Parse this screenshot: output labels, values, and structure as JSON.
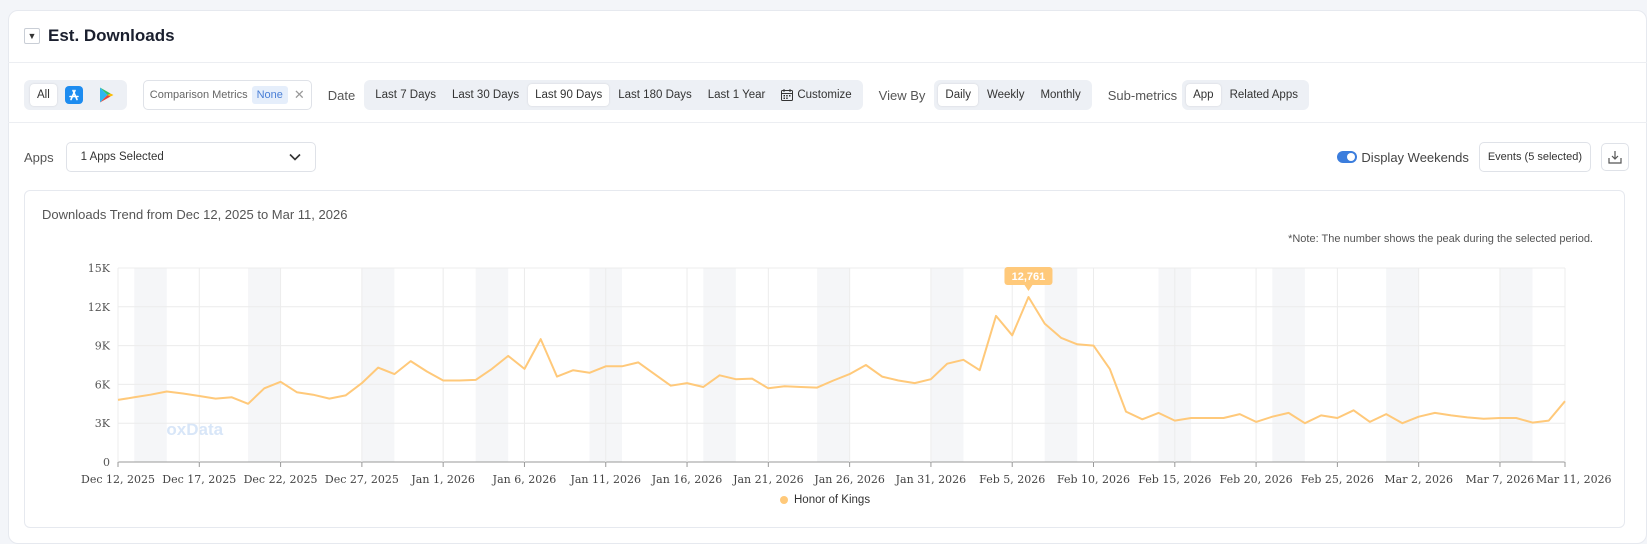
{
  "header": {
    "title": "Est. Downloads"
  },
  "store_filter": {
    "all_label": "All",
    "app_store_icon": "app-store-icon",
    "google_play_icon": "google-play-icon"
  },
  "comparison": {
    "label": "Comparison Metrics",
    "value": "None"
  },
  "date": {
    "label": "Date",
    "options": [
      "Last 7 Days",
      "Last 30 Days",
      "Last 90 Days",
      "Last 180 Days",
      "Last 1 Year"
    ],
    "selected": "Last 90 Days",
    "customize_label": "Customize"
  },
  "view_by": {
    "label": "View By",
    "options": [
      "Daily",
      "Weekly",
      "Monthly"
    ],
    "selected": "Daily"
  },
  "sub_metrics": {
    "label": "Sub-metrics",
    "options": [
      "App",
      "Related Apps"
    ],
    "selected": "App"
  },
  "apps": {
    "label": "Apps",
    "selected_text": "1 Apps Selected"
  },
  "display_weekends": {
    "label": "Display Weekends",
    "on": true
  },
  "events": {
    "label": "Events (5 selected)"
  },
  "chart_header": {
    "title": "Downloads Trend from Dec 12, 2025 to Mar 11, 2026",
    "note": "*Note: The number shows the peak during the selected period.",
    "watermark": "FoxData"
  },
  "colors": {
    "accent": "#3b7ddd",
    "series": "#ffc97a",
    "peak_label": "#ffc97a"
  },
  "chart_data": {
    "type": "line",
    "title": "Downloads Trend from Dec 12, 2025 to Mar 11, 2026",
    "xlabel": "",
    "ylabel": "",
    "ylim": [
      0,
      15000
    ],
    "yticks": [
      0,
      3000,
      6000,
      9000,
      12000,
      15000
    ],
    "ytick_labels": [
      "0",
      "3K",
      "6K",
      "9K",
      "12K",
      "15K"
    ],
    "xtick_labels": [
      "Dec 12, 2025",
      "Dec 17, 2025",
      "Dec 22, 2025",
      "Dec 27, 2025",
      "Jan 1, 2026",
      "Jan 6, 2026",
      "Jan 11, 2026",
      "Jan 16, 2026",
      "Jan 21, 2026",
      "Jan 26, 2026",
      "Jan 31, 2026",
      "Feb 5, 2026",
      "Feb 10, 2026",
      "Feb 15, 2026",
      "Feb 20, 2026",
      "Feb 25, 2026",
      "Mar 2, 2026",
      "Mar 7, 2026",
      "Mar 11, 2026"
    ],
    "xtick_day_index": [
      0,
      5,
      10,
      15,
      20,
      25,
      30,
      35,
      40,
      45,
      50,
      55,
      60,
      65,
      70,
      75,
      80,
      85,
      89
    ],
    "weekend_start_day_index": [
      1,
      8,
      15,
      22,
      29,
      36,
      43,
      50,
      57,
      64,
      71,
      78,
      85
    ],
    "grid": true,
    "legend_position": "bottom",
    "peak": {
      "day_index": 56,
      "value": 12761,
      "label": "12,761"
    },
    "series": [
      {
        "name": "Honor of Kings",
        "values": [
          4800,
          5000,
          5200,
          5450,
          5300,
          5100,
          4900,
          5000,
          4500,
          5700,
          6200,
          5400,
          5200,
          4900,
          5150,
          6100,
          7300,
          6800,
          7800,
          7000,
          6300,
          6300,
          6350,
          7200,
          8200,
          7200,
          9500,
          6600,
          7100,
          6900,
          7400,
          7400,
          7700,
          6800,
          5900,
          6100,
          5800,
          6700,
          6400,
          6450,
          5700,
          5850,
          5800,
          5750,
          6300,
          6800,
          7500,
          6600,
          6300,
          6100,
          6400,
          7600,
          7900,
          7100,
          11300,
          9800,
          12761,
          10700,
          9600,
          9100,
          9000,
          7200,
          3900,
          3300,
          3800,
          3200,
          3400,
          3400,
          3400,
          3700,
          3100,
          3500,
          3800,
          3000,
          3600,
          3400,
          4000,
          3100,
          3700,
          3000,
          3500,
          3800,
          3600,
          3450,
          3350,
          3400,
          3400,
          3050,
          3200,
          4700
        ]
      }
    ]
  }
}
